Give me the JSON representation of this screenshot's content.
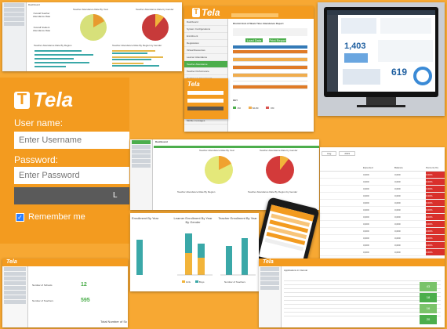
{
  "login": {
    "brand": "Tela",
    "logo_letter": "T",
    "username_label": "User name:",
    "username_placeholder": "Enter Username",
    "password_label": "Password:",
    "password_placeholder": "Enter Password",
    "remember_label": "Remember me",
    "signin_partial": "L"
  },
  "dashboard_top": {
    "title": "Dashboard",
    "cards": [
      "Overall Teacher Attendance Rate",
      "Overall Student Attendance Rate"
    ],
    "charts": [
      "Teacher Attendance Rate By Year",
      "Teacher Attendance Rate by Gender",
      "Teacher Attendance Rate By Region",
      "Teacher Attendance Rate By Region by Gender"
    ]
  },
  "admin_panel": {
    "brand": "Tela",
    "form_title": "District End of Week Time Attendance Report",
    "tabs": [
      "Load Data",
      "Print Report"
    ],
    "menu": [
      "Dashboard",
      "System Configurations",
      "Enrollment",
      "Registration",
      "Virtual Resources",
      "Learner Attendance",
      "Teacher Attendance",
      "Teacher Performance",
      "Continuous Assessment",
      "Exam Scores",
      "Learning Material",
      "Reports",
      "Communication",
      "Messaging",
      "Mobile messages"
    ],
    "pie_title": "Teacher Attendance Rate",
    "key": "KEY",
    "legend": [
      "<60",
      "60-80",
      ">80"
    ]
  },
  "dark_dashboard": {
    "metrics": [
      "1,403",
      "619"
    ]
  },
  "dashboard_mid": {
    "title": "Dashboard",
    "charts": [
      "Teacher Attendance Rate By Year",
      "Teacher Attendance Rate by Gender",
      "Teacher Attendance Rate By Region",
      "Teacher Attendance Rate By Region by Gender"
    ]
  },
  "table_panel": {
    "filters": [
      "Aug",
      "2019"
    ],
    "columns": [
      "Expected",
      "Balance",
      "Percent (%)"
    ],
    "rows": [
      {
        "expected": "3,000",
        "balance": "3,000",
        "percent": "0.00%"
      },
      {
        "expected": "3,000",
        "balance": "3,000",
        "percent": "0.00%"
      },
      {
        "expected": "3,000",
        "balance": "3,000",
        "percent": "0.00%"
      },
      {
        "expected": "3,000",
        "balance": "3,000",
        "percent": "0.00%"
      },
      {
        "expected": "3,000",
        "balance": "3,000",
        "percent": "0.00%"
      },
      {
        "expected": "3,000",
        "balance": "3,000",
        "percent": "0.00%"
      },
      {
        "expected": "3,000",
        "balance": "3,000",
        "percent": "0.00%"
      },
      {
        "expected": "3,000",
        "balance": "3,000",
        "percent": "0.00%"
      },
      {
        "expected": "3,000",
        "balance": "3,000",
        "percent": "0.00%"
      },
      {
        "expected": "3,000",
        "balance": "3,000",
        "percent": "0.00%"
      },
      {
        "expected": "3,000",
        "balance": "3,000",
        "percent": "0.00%"
      },
      {
        "expected": "3,000",
        "balance": "3,000",
        "percent": "0.00%"
      }
    ]
  },
  "enrollment": {
    "chart1": "Enrollment By Year",
    "chart2": "Learner Enrollment By Year By Gender",
    "chart3": "Teacher Enrollment By Year",
    "chart2_legend": [
      "Girls",
      "Boys"
    ],
    "chart3_legend": "Number of Teachers",
    "years_partial": [
      "2017",
      "2018",
      "2019"
    ]
  },
  "bottom_left": {
    "brand": "Tela",
    "stats": [
      {
        "label": "Number of Schools",
        "value": "12"
      },
      {
        "label": "Number of Teachers",
        "value": "595"
      }
    ],
    "footer": "Total Number of Sc"
  },
  "bottom_right": {
    "brand": "Tela",
    "title": "Applications in Interval",
    "col_values": [
      "43",
      "18",
      "16",
      "20"
    ]
  }
}
